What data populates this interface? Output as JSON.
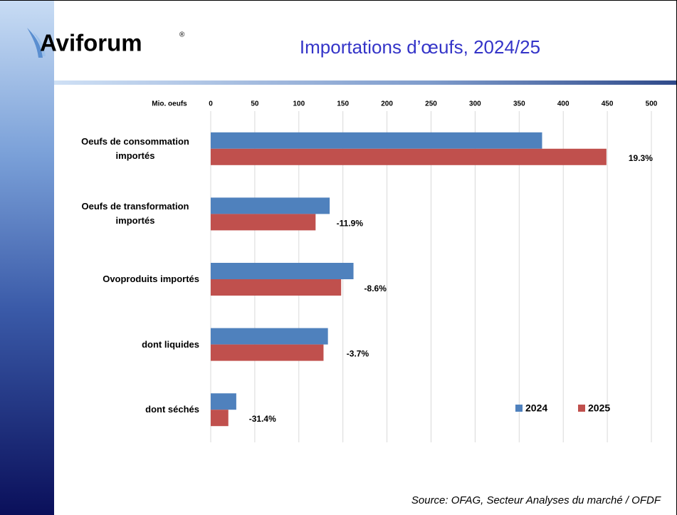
{
  "header": {
    "logo": "Aviforum",
    "logo_mark": "®",
    "title": "Importations d’œufs, 2024/25"
  },
  "chart_data": {
    "type": "hbar",
    "axis_label": "Mio. oeufs",
    "categories": [
      "Oeufs de consommation importés",
      "Oeufs de transformation importés",
      "Ovoproduits importés",
      "dont liquides",
      "dont séchés"
    ],
    "series": [
      {
        "name": "2024",
        "color": "#4f81bd",
        "values": [
          376,
          135,
          162,
          133,
          29
        ]
      },
      {
        "name": "2025",
        "color": "#c0504d",
        "values": [
          449,
          119,
          148,
          128,
          20
        ]
      }
    ],
    "changes": {
      "values": [
        19.3,
        -11.9,
        -8.6,
        -3.7,
        -31.4
      ],
      "value_labels": [
        "19.3%",
        "-11.9%",
        "-8.6%",
        "-3.7%",
        "-31.4%"
      ]
    },
    "xlim": [
      0,
      500
    ],
    "xticks": [
      0,
      50,
      100,
      150,
      200,
      250,
      300,
      350,
      400,
      450,
      500
    ],
    "grid": true,
    "legend": "lower right"
  },
  "source": "Source: OFAG, Secteur Analyses du marché / OFDF"
}
